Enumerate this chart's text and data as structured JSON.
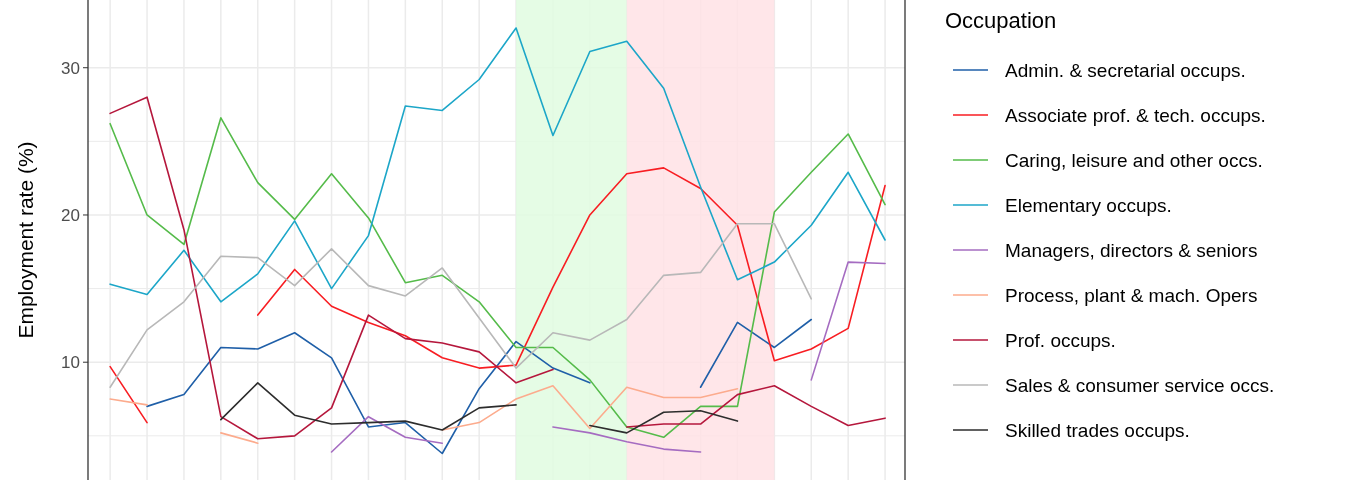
{
  "chart_data": {
    "type": "line",
    "ylabel": "Employment rate (%)",
    "legend_title": "Occupation",
    "legend": "right",
    "grid": true,
    "tick_labels": "y",
    "line_style": "solid",
    "marker": "none",
    "categories": [
      null,
      null,
      null,
      null,
      null,
      null,
      null,
      null,
      null,
      null,
      null,
      null,
      null,
      null,
      null,
      null,
      null,
      null,
      null,
      null,
      null,
      null
    ],
    "ylim": [
      2,
      34.6
    ],
    "yticks": [
      10,
      20,
      30
    ],
    "series": [
      {
        "name": "Admin. & secretarial occups.",
        "color": "#1f5fa8",
        "values": [
          null,
          7.0,
          7.8,
          11.0,
          10.9,
          12.0,
          10.3,
          5.6,
          5.9,
          3.8,
          8.2,
          11.4,
          9.6,
          8.6,
          null,
          null,
          8.3,
          12.7,
          11.0,
          12.9,
          null,
          null
        ]
      },
      {
        "name": "Associate prof. & tech. occups.",
        "color": "#f81d22",
        "values": [
          9.7,
          5.9,
          null,
          null,
          13.2,
          16.3,
          13.8,
          12.7,
          11.8,
          10.3,
          9.6,
          9.8,
          15.1,
          20.0,
          22.8,
          23.2,
          21.8,
          19.3,
          10.1,
          10.9,
          12.3,
          22.0
        ]
      },
      {
        "name": "Caring, leisure and other occs.",
        "color": "#55bb4a",
        "values": [
          26.2,
          20.0,
          18.0,
          26.6,
          22.2,
          19.7,
          22.8,
          19.8,
          15.4,
          15.9,
          14.1,
          11.0,
          11.0,
          8.8,
          5.6,
          4.9,
          7.0,
          7.0,
          20.2,
          22.9,
          25.5,
          20.7
        ]
      },
      {
        "name": "Elementary occups.",
        "color": "#1ca6c8",
        "values": [
          15.3,
          14.6,
          17.6,
          14.1,
          16.0,
          19.6,
          15.0,
          18.6,
          27.4,
          27.1,
          29.2,
          32.7,
          25.4,
          31.1,
          31.8,
          28.6,
          21.9,
          15.6,
          16.8,
          19.3,
          22.9,
          18.3
        ]
      },
      {
        "name": "Managers, directors & seniors",
        "color": "#a56cc1",
        "values": [
          null,
          null,
          null,
          null,
          null,
          null,
          3.9,
          6.3,
          4.9,
          4.5,
          null,
          null,
          5.6,
          5.2,
          4.6,
          4.1,
          3.9,
          null,
          null,
          8.8,
          16.8,
          16.7
        ]
      },
      {
        "name": "Process, plant & mach. Opers",
        "color": "#fcab8d",
        "values": [
          7.5,
          7.1,
          null,
          5.2,
          4.5,
          null,
          null,
          null,
          null,
          5.4,
          5.9,
          7.5,
          8.4,
          5.5,
          8.3,
          7.6,
          7.6,
          8.2,
          null,
          null,
          null,
          null
        ]
      },
      {
        "name": "Prof. occups.",
        "color": "#b5173c",
        "values": [
          26.9,
          28.0,
          19.0,
          6.3,
          4.8,
          5.0,
          6.9,
          13.2,
          11.6,
          11.3,
          10.7,
          8.6,
          9.5,
          null,
          5.6,
          5.8,
          5.8,
          7.8,
          8.4,
          7.0,
          5.7,
          6.2
        ]
      },
      {
        "name": "Sales & consumer service occs.",
        "color": "#b8b8b8",
        "values": [
          8.3,
          12.2,
          14.1,
          17.2,
          17.1,
          15.2,
          17.7,
          15.2,
          14.5,
          16.4,
          13.0,
          9.6,
          12.0,
          11.5,
          12.9,
          15.9,
          16.1,
          19.4,
          19.4,
          14.3,
          null,
          null
        ]
      },
      {
        "name": "Skilled trades occups.",
        "color": "#2d2d2d",
        "values": [
          null,
          null,
          null,
          6.1,
          8.6,
          6.4,
          5.8,
          5.9,
          6.0,
          5.4,
          6.9,
          7.1,
          null,
          5.7,
          5.2,
          6.6,
          6.7,
          6.0,
          null,
          null,
          null,
          null
        ]
      }
    ]
  }
}
